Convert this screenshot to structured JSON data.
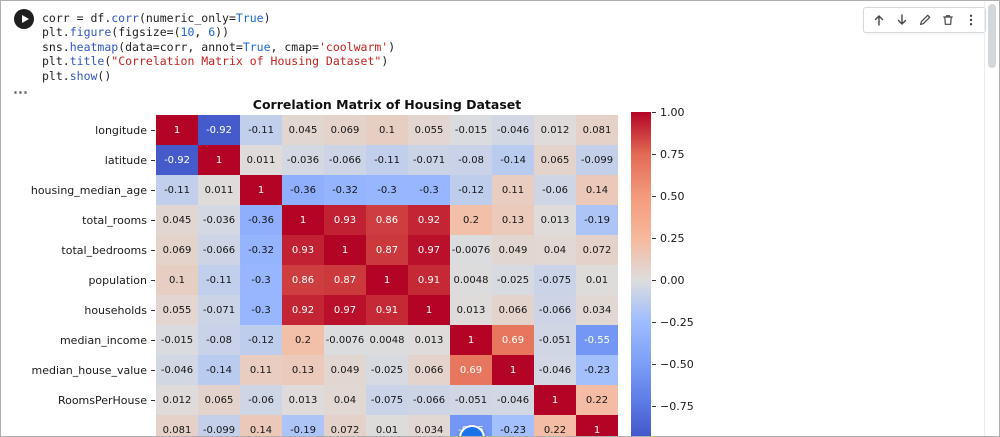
{
  "code_cell": {
    "code_lines": [
      "corr = df.corr(numeric_only=True)",
      "plt.figure(figsize=(10, 6))",
      "sns.heatmap(data=corr, annot=True, cmap='coolwarm')",
      "plt.title(\"Correlation Matrix of Housing Dataset\")",
      "plt.show()"
    ],
    "toolbar_buttons": [
      "move-cell-up",
      "move-cell-down",
      "edit-cell",
      "delete-cell",
      "more-options"
    ]
  },
  "output": {
    "options_icon": "⋯"
  },
  "colors": {
    "accent_blue": "#1a73e8",
    "run_button": "#1f1f1f"
  },
  "chart_data": {
    "type": "heatmap",
    "title": "Correlation Matrix of Housing Dataset",
    "cmap": "coolwarm",
    "vmin": -1,
    "vmax": 1,
    "row_labels": [
      "longitude",
      "latitude",
      "housing_median_age",
      "total_rooms",
      "total_bedrooms",
      "population",
      "households",
      "median_income",
      "median_house_value",
      "RoomsPerHouse",
      ""
    ],
    "matrix": [
      [
        "1",
        "-0.92",
        "-0.11",
        "0.045",
        "0.069",
        "0.1",
        "0.055",
        "-0.015",
        "-0.046",
        "0.012",
        "0.081"
      ],
      [
        "-0.92",
        "1",
        "0.011",
        "-0.036",
        "-0.066",
        "-0.11",
        "-0.071",
        "-0.08",
        "-0.14",
        "0.065",
        "-0.099"
      ],
      [
        "-0.11",
        "0.011",
        "1",
        "-0.36",
        "-0.32",
        "-0.3",
        "-0.3",
        "-0.12",
        "0.11",
        "-0.06",
        "0.14"
      ],
      [
        "0.045",
        "-0.036",
        "-0.36",
        "1",
        "0.93",
        "0.86",
        "0.92",
        "0.2",
        "0.13",
        "0.013",
        "-0.19"
      ],
      [
        "0.069",
        "-0.066",
        "-0.32",
        "0.93",
        "1",
        "0.87",
        "0.97",
        "-0.0076",
        "0.049",
        "0.04",
        "0.072"
      ],
      [
        "0.1",
        "-0.11",
        "-0.3",
        "0.86",
        "0.87",
        "1",
        "0.91",
        "0.0048",
        "-0.025",
        "-0.075",
        "0.01"
      ],
      [
        "0.055",
        "-0.071",
        "-0.3",
        "0.92",
        "0.97",
        "0.91",
        "1",
        "0.013",
        "0.066",
        "-0.066",
        "0.034"
      ],
      [
        "-0.015",
        "-0.08",
        "-0.12",
        "0.2",
        "-0.0076",
        "0.0048",
        "0.013",
        "1",
        "0.69",
        "-0.051",
        "-0.55"
      ],
      [
        "-0.046",
        "-0.14",
        "0.11",
        "0.13",
        "0.049",
        "-0.025",
        "0.066",
        "0.69",
        "1",
        "-0.046",
        "-0.23"
      ],
      [
        "0.012",
        "0.065",
        "-0.06",
        "0.013",
        "0.04",
        "-0.075",
        "-0.066",
        "-0.051",
        "-0.046",
        "1",
        "0.22"
      ],
      [
        "0.081",
        "-0.099",
        "0.14",
        "-0.19",
        "0.072",
        "0.01",
        "0.034",
        "-0.55",
        "-0.23",
        "0.22",
        "1"
      ]
    ],
    "colorbar_ticks": [
      "1.00",
      "0.75",
      "0.50",
      "0.25",
      "0.00",
      "−0.25",
      "−0.50",
      "−0.75"
    ],
    "legend_position": "right",
    "grid": false
  }
}
